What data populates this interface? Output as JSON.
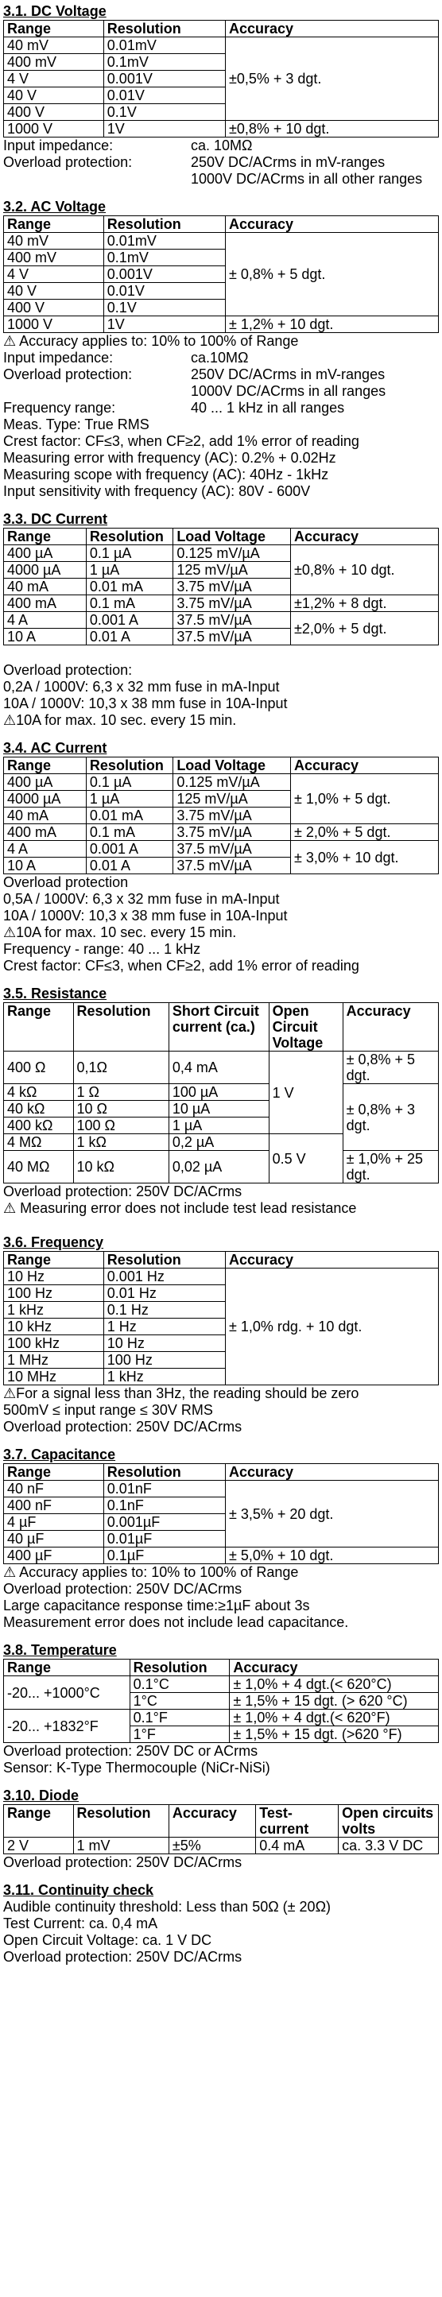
{
  "sections": [
    {
      "heading": "3.1. DC Voltage",
      "table": {
        "header": [
          "Range",
          "Resolution",
          "Accuracy"
        ],
        "rows": [
          [
            "40 mV",
            "0.01mV",
            "±0,5% + 3 dgt."
          ],
          [
            "400 mV",
            "0.1mV"
          ],
          [
            "4 V",
            "0.001V"
          ],
          [
            "40 V",
            "0.01V"
          ],
          [
            "400 V",
            "0.1V"
          ],
          [
            "1000 V",
            "1V",
            "±0,8% + 10 dgt."
          ]
        ]
      },
      "notes": [
        {
          "label": "Input impedance:",
          "value": "ca. 10MΩ"
        },
        {
          "label": "Overload protection:",
          "value": "250V DC/ACrms in mV-ranges"
        },
        {
          "value": "1000V DC/ACrms in all other ranges"
        }
      ]
    },
    {
      "heading": "3.2. AC Voltage",
      "table": {
        "header": [
          "Range",
          "Resolution",
          "Accuracy"
        ],
        "rows": [
          [
            "40 mV",
            "0.01mV",
            "± 0,8% + 5 dgt."
          ],
          [
            "400 mV",
            "0.1mV"
          ],
          [
            "4 V",
            "0.001V"
          ],
          [
            "40 V",
            "0.01V"
          ],
          [
            "400 V",
            "0.1V"
          ],
          [
            "1000 V",
            "1V",
            "± 1,2% + 10 dgt."
          ]
        ]
      },
      "notes": [
        "⚠ Accuracy applies to: 10% to 100% of Range",
        {
          "label": "Input impedance:",
          "value": "ca.10MΩ"
        },
        {
          "label": "Overload protection:",
          "value": "250V DC/ACrms in mV-ranges"
        },
        {
          "value": "1000V DC/ACrms in all ranges"
        },
        {
          "label": "Frequency range:",
          "value": "40 ... 1 kHz in all ranges"
        },
        "Meas. Type: True RMS",
        "Crest factor: CF≤3, when CF≥2, add 1% error of reading",
        "Measuring error with frequency (AC): 0.2% + 0.02Hz",
        "Measuring scope with frequency (AC): 40Hz - 1kHz",
        "Input sensitivity with frequency (AC): 80V - 600V"
      ]
    },
    {
      "heading": "3.3. DC Current",
      "table": {
        "header": [
          "Range",
          "Resolution",
          "Load Voltage",
          "Accuracy"
        ],
        "rows": [
          [
            "400 µA",
            "0.1 µA",
            "0.125 mV/µA",
            "±0,8% + 10 dgt."
          ],
          [
            "4000 µA",
            "1 µA",
            "125 mV/µA"
          ],
          [
            "40 mA",
            "0.01 mA",
            "3.75 mV/µA"
          ],
          [
            "400 mA",
            "0.1 mA",
            "3.75 mV/µA",
            "±1,2% + 8 dgt."
          ],
          [
            "4 A",
            "0.001 A",
            "37.5 mV/µA",
            "±2,0% + 5 dgt."
          ],
          [
            "10 A",
            "0.01 A",
            "37.5 mV/µA"
          ]
        ]
      },
      "notes": [
        "Overload protection:",
        "0,2A / 1000V: 6,3 x 32 mm fuse in mA-Input",
        "10A / 1000V: 10,3 x 38 mm fuse in 10A-Input",
        "⚠10A for max. 10 sec. every 15 min."
      ]
    },
    {
      "heading": "3.4. AC Current",
      "table": {
        "header": [
          "Range",
          "Resolution",
          "Load Voltage",
          "Accuracy"
        ],
        "rows": [
          [
            "400 µA",
            "0.1 µA",
            "0.125 mV/µA",
            "± 1,0% + 5 dgt."
          ],
          [
            "4000 µA",
            "1 µA",
            "125 mV/µA"
          ],
          [
            "40 mA",
            "0.01 mA",
            "3.75 mV/µA"
          ],
          [
            "400 mA",
            "0.1 mA",
            "3.75 mV/µA",
            "± 2,0% + 5 dgt."
          ],
          [
            "4 A",
            "0.001 A",
            "37.5 mV/µA",
            "± 3,0% + 10 dgt."
          ],
          [
            "10 A",
            "0.01 A",
            "37.5 mV/µA"
          ]
        ]
      },
      "notes": [
        "Overload protection",
        "0,5A / 1000V: 6,3 x 32 mm fuse in mA-Input",
        "10A / 1000V: 10,3 x 38 mm fuse in 10A-Input",
        "⚠10A for max. 10 sec. every 15 min.",
        "Frequency - range: 40 ... 1 kHz",
        "Crest factor: CF≤3, when CF≥2, add 1% error of reading"
      ]
    },
    {
      "heading": "3.5. Resistance",
      "table": {
        "header": [
          "Range",
          "Resolution",
          "Short Circuit current (ca.)",
          "Open Circuit Voltage",
          "Accuracy"
        ],
        "rows": [
          [
            "400 Ω",
            "0,1Ω",
            "0,4 mA",
            "1 V",
            "± 0,8% + 5 dgt."
          ],
          [
            "4 kΩ",
            "1 Ω",
            "100 µA",
            "± 0,8% + 3 dgt."
          ],
          [
            "40 kΩ",
            "10 Ω",
            "10 µA"
          ],
          [
            "400 kΩ",
            "100 Ω",
            "1 µA"
          ],
          [
            "4 MΩ",
            "1 kΩ",
            "0,2 µA",
            "0.5 V"
          ],
          [
            "40 MΩ",
            "10 kΩ",
            "0,02 µA",
            "± 1,0% + 25 dgt."
          ]
        ]
      },
      "notes": [
        "Overload protection: 250V DC/ACrms",
        "⚠ Measuring error does not include test lead resistance"
      ]
    },
    {
      "heading": "3.6. Frequency",
      "table": {
        "header": [
          "Range",
          "Resolution",
          "Accuracy"
        ],
        "rows": [
          [
            "10 Hz",
            "0.001 Hz",
            "± 1,0% rdg. + 10 dgt."
          ],
          [
            "100 Hz",
            "0.01 Hz"
          ],
          [
            "1 kHz",
            "0.1 Hz"
          ],
          [
            "10 kHz",
            "1 Hz"
          ],
          [
            "100 kHz",
            "10 Hz"
          ],
          [
            "1 MHz",
            "100 Hz"
          ],
          [
            "10 MHz",
            "1 kHz"
          ]
        ]
      },
      "notes": [
        "⚠For a signal less than 3Hz, the reading should be zero",
        "500mV ≤ input range ≤ 30V RMS",
        "Overload protection: 250V DC/ACrms"
      ]
    },
    {
      "heading": "3.7. Capacitance",
      "table": {
        "header": [
          "Range",
          "Resolution",
          "Accuracy"
        ],
        "rows": [
          [
            "40 nF",
            "0.01nF",
            "± 3,5% + 20 dgt."
          ],
          [
            "400 nF",
            "0.1nF"
          ],
          [
            "4 µF",
            "0.001µF"
          ],
          [
            "40 µF",
            "0.01µF"
          ],
          [
            "400 µF",
            "0.1µF",
            "± 5,0% + 10 dgt."
          ]
        ]
      },
      "notes": [
        "⚠ Accuracy applies to: 10% to 100% of Range",
        "Overload protection: 250V DC/ACrms",
        "Large capacitance response time:≥1µF about 3s",
        "Measurement error does not include lead capacitance."
      ]
    },
    {
      "heading": "3.8. Temperature",
      "table": {
        "header": [
          "Range",
          "Resolution",
          "Accuracy"
        ],
        "rows": [
          [
            "-20... +1000°C",
            "0.1°C",
            "± 1,0% + 4 dgt.(< 620°C)"
          ],
          [
            "1°C",
            "± 1,5% + 15 dgt. (> 620 °C)"
          ],
          [
            "-20... +1832°F",
            "0.1°F",
            "± 1,0% + 4 dgt.(< 620°F)"
          ],
          [
            "1°F",
            "± 1,5% + 15 dgt. (>620 °F)"
          ]
        ]
      },
      "notes": [
        "Overload protection: 250V DC or ACrms",
        "Sensor: K-Type Thermocouple (NiCr-NiSi)"
      ]
    },
    {
      "heading": "3.10. Diode",
      "table": {
        "header": [
          "Range",
          "Resolution",
          "Accuracy",
          "Test-current",
          "Open circuits volts"
        ],
        "rows": [
          [
            "2 V",
            "1 mV",
            "±5%",
            "0.4 mA",
            "ca. 3.3 V DC"
          ]
        ]
      },
      "notes": [
        "Overload protection: 250V DC/ACrms"
      ]
    },
    {
      "heading": "3.11. Continuity check",
      "notes": [
        "Audible continuity threshold: Less than 50Ω (± 20Ω)",
        "Test Current: ca. 0,4 mA",
        "Open Circuit Voltage: ca. 1 V DC",
        "Overload protection: 250V DC/ACrms"
      ]
    }
  ]
}
